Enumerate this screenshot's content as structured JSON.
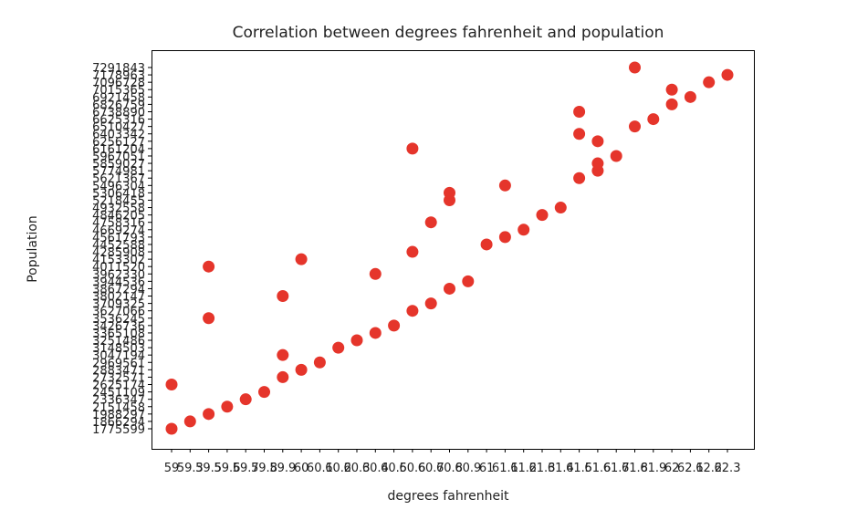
{
  "chart_data": {
    "type": "scatter",
    "title": "Correlation between degrees fahrenheit and population",
    "x_label": "degrees fahrenheit",
    "y_label": "Population",
    "color": "#e5352b",
    "xticks": [
      "59",
      "59.3",
      "59.5",
      "59.6",
      "59.7",
      "59.8",
      "59.9",
      "60",
      "60.1",
      "60.2",
      "60.3",
      "60.4",
      "60.5",
      "60.6",
      "60.7",
      "60.8",
      "60.9",
      "61",
      "61.1",
      "61.2",
      "61.3",
      "61.4",
      "61.5",
      "61.6",
      "61.7",
      "61.8",
      "61.9",
      "62",
      "62.1",
      "62.2",
      "62.3"
    ],
    "yticks": [
      "1775599",
      "1866294",
      "1988297",
      "2151458",
      "2336347",
      "2451109",
      "2625174",
      "2732571",
      "2883471",
      "2969561",
      "3047194",
      "3148503",
      "3251486",
      "3365108",
      "3426736",
      "3536245",
      "3627066",
      "3709325",
      "3802147",
      "3867294",
      "3944536",
      "3962330",
      "4011520",
      "4153302",
      "4285908",
      "4452588",
      "4561793",
      "4669274",
      "4758316",
      "4846205",
      "4932558",
      "5218455",
      "5306418",
      "5496304",
      "5621367",
      "5774981",
      "5859027",
      "5967051",
      "6161204",
      "6256127",
      "6403342",
      "6510427",
      "6625316",
      "6738890",
      "6826759",
      "6921458",
      "7015365",
      "7096728",
      "7178963",
      "7291843"
    ],
    "x": [
      "59",
      "59.3",
      "59.5",
      "59.6",
      "59.7",
      "59.8",
      "59",
      "59.9",
      "60",
      "60.1",
      "59.9",
      "60.2",
      "60.3",
      "60.4",
      "60.5",
      "59.5",
      "60.6",
      "60.7",
      "59.9",
      "60.8",
      "60.9",
      "60.4",
      "59.5",
      "60",
      "60.6",
      "61",
      "61.1",
      "61.2",
      "60.7",
      "61.3",
      "61.4",
      "60.8",
      "60.8",
      "61.1",
      "61.5",
      "61.6",
      "61.6",
      "61.7",
      "60.6",
      "61.6",
      "61.5",
      "61.8",
      "61.9",
      "61.5",
      "62",
      "62.1",
      "62",
      "62.2",
      "62.3",
      "61.8"
    ],
    "y": [
      "1775599",
      "1866294",
      "1988297",
      "2151458",
      "2336347",
      "2451109",
      "2625174",
      "2732571",
      "2883471",
      "2969561",
      "3047194",
      "3148503",
      "3251486",
      "3365108",
      "3426736",
      "3536245",
      "3627066",
      "3709325",
      "3802147",
      "3867294",
      "3944536",
      "3962330",
      "4011520",
      "4153302",
      "4285908",
      "4452588",
      "4561793",
      "4669274",
      "4758316",
      "4846205",
      "4932558",
      "5218455",
      "5306418",
      "5496304",
      "5621367",
      "5774981",
      "5859027",
      "5967051",
      "6161204",
      "6256127",
      "6403342",
      "6510427",
      "6625316",
      "6738890",
      "6826759",
      "6921458",
      "7015365",
      "7096728",
      "7178963",
      "7291843"
    ]
  }
}
